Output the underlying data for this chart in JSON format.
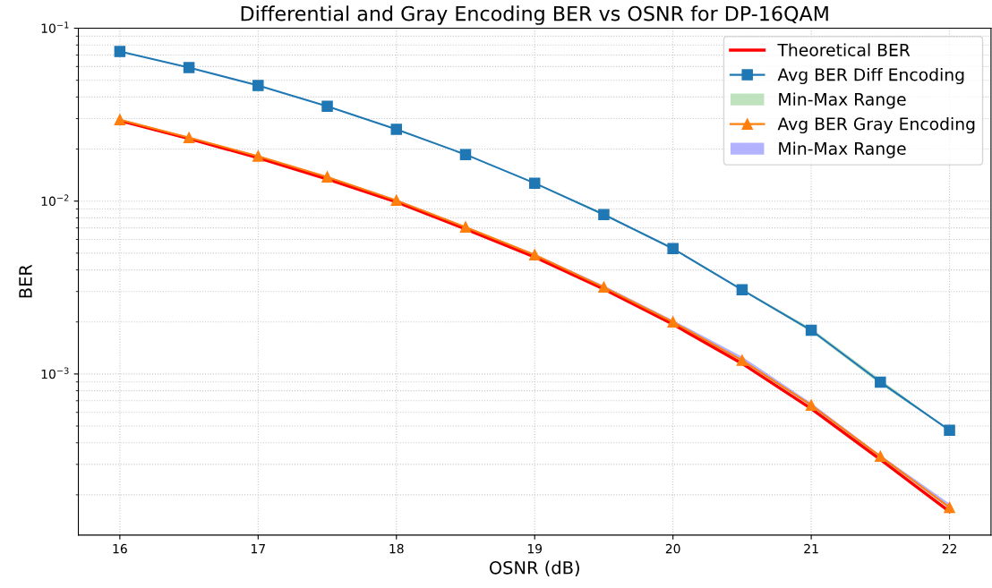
{
  "chart_data": {
    "type": "line",
    "title": "Differential and Gray Encoding BER vs OSNR for DP-16QAM",
    "xlabel": "OSNR (dB)",
    "ylabel": "BER",
    "x": [
      16,
      16.5,
      17,
      17.5,
      18,
      18.5,
      19,
      19.5,
      20,
      20.5,
      21,
      21.5,
      22
    ],
    "series": [
      {
        "name": "Theoretical BER",
        "color": "#ff0000",
        "marker": "none",
        "values": [
          0.0292,
          0.023,
          0.0178,
          0.0134,
          0.0099,
          0.0069,
          0.00475,
          0.0031,
          0.00194,
          0.00115,
          0.00063,
          0.00032,
          0.00016
        ]
      },
      {
        "name": "Avg BER Diff Encoding",
        "color": "#1f77b4",
        "marker": "square",
        "values": [
          0.0733,
          0.0592,
          0.0466,
          0.0354,
          0.026,
          0.0186,
          0.0127,
          0.00836,
          0.00531,
          0.00307,
          0.00179,
          0.000898,
          0.000472
        ]
      },
      {
        "name": "Min-Max Range",
        "type": "area",
        "color": "#2ca02c",
        "values": [
          null,
          null,
          null,
          null,
          null,
          null,
          null,
          null,
          null,
          null,
          null,
          null,
          null
        ],
        "lower": [
          0.0731,
          0.059,
          0.0464,
          0.0352,
          0.0258,
          0.0185,
          0.0126,
          0.00825,
          0.00525,
          0.00303,
          0.00175,
          0.00087,
          0.00047
        ],
        "upper": [
          0.0735,
          0.0594,
          0.0468,
          0.0356,
          0.0262,
          0.0188,
          0.0128,
          0.0085,
          0.00537,
          0.00311,
          0.00184,
          0.00093,
          0.000474
        ]
      },
      {
        "name": "Avg BER Gray Encoding",
        "color": "#ff7f0e",
        "marker": "triangle",
        "values": [
          0.0296,
          0.0233,
          0.0182,
          0.0138,
          0.0101,
          0.00708,
          0.00489,
          0.00318,
          0.002,
          0.0012,
          0.00066,
          0.000334,
          0.000169
        ]
      },
      {
        "name": "Min-Max Range",
        "type": "area",
        "color": "#0000ff",
        "values": [
          null,
          null,
          null,
          null,
          null,
          null,
          null,
          null,
          null,
          null,
          null,
          null,
          null
        ],
        "lower": [
          0.0295,
          0.0232,
          0.0181,
          0.0137,
          0.01,
          0.00703,
          0.00485,
          0.00315,
          0.00198,
          0.00118,
          0.00065,
          0.00033,
          0.000166
        ],
        "upper": [
          0.0297,
          0.0234,
          0.0183,
          0.0139,
          0.0102,
          0.00713,
          0.00495,
          0.00325,
          0.00205,
          0.00126,
          0.00068,
          0.00034,
          0.000178
        ]
      }
    ],
    "log": "y",
    "xlim": [
      15.7,
      22.3
    ],
    "xticks": [
      16,
      17,
      18,
      19,
      20,
      21,
      22
    ],
    "ylim": [
      0.000117,
      0.1
    ],
    "yticks": [
      {
        "value": 0.001,
        "label": "10$^{−3}$"
      },
      {
        "value": 0.01,
        "label": "10$^{−2}$"
      },
      {
        "value": 0.1,
        "label": "10$^{−1}$"
      }
    ],
    "grid": true,
    "legend": "top right",
    "line_style": "solid"
  }
}
